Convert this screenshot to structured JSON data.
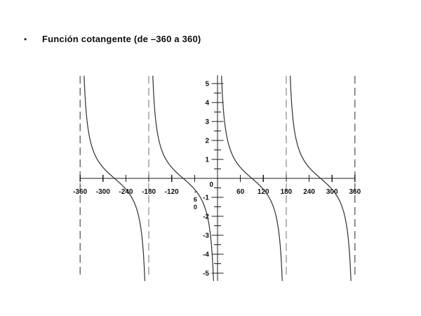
{
  "slide": {
    "bullet": "•",
    "title": "Función cotangente (de –360 a 360)"
  },
  "chart_data": {
    "type": "line",
    "title": "Función cotangente (de –360 a 360)",
    "function": "cot(x)",
    "x_unit": "degrees",
    "xlim": [
      -360,
      360
    ],
    "ylim": [
      -5.4,
      5.4
    ],
    "y_axis_labeled_range": [
      -5,
      5
    ],
    "x_tick_step": 60,
    "x_ticks": [
      -360,
      -300,
      -240,
      -180,
      -120,
      -60,
      0,
      60,
      120,
      180,
      240,
      300,
      360
    ],
    "x_tick_labels": [
      "-360",
      "-300",
      "-240",
      "-180",
      "-120",
      "-60",
      "0",
      "60",
      "120",
      "180",
      "240",
      "300",
      "360"
    ],
    "vertical_x_label": "-60",
    "origin_label": "0",
    "y_ticks": [
      -5,
      -4,
      -3,
      -2,
      -1,
      1,
      2,
      3,
      4,
      5
    ],
    "y_tick_labels": [
      "-5",
      "-4",
      "-3",
      "-2",
      "-1",
      "1",
      "2",
      "3",
      "4",
      "5"
    ],
    "y_minor_tick_step": 0.5,
    "asymptotes_x": [
      -360,
      -180,
      0,
      180,
      360
    ],
    "zero_crossings_x": [
      -270,
      -90,
      90,
      270
    ],
    "period_degrees": 180,
    "grid": false,
    "legend": false,
    "colors": {
      "curve": "#303030",
      "axis": "#1c1c1c",
      "asymptote": "#6f6f6f",
      "labels": "#0f0f0f",
      "background": "#ffffff"
    }
  }
}
